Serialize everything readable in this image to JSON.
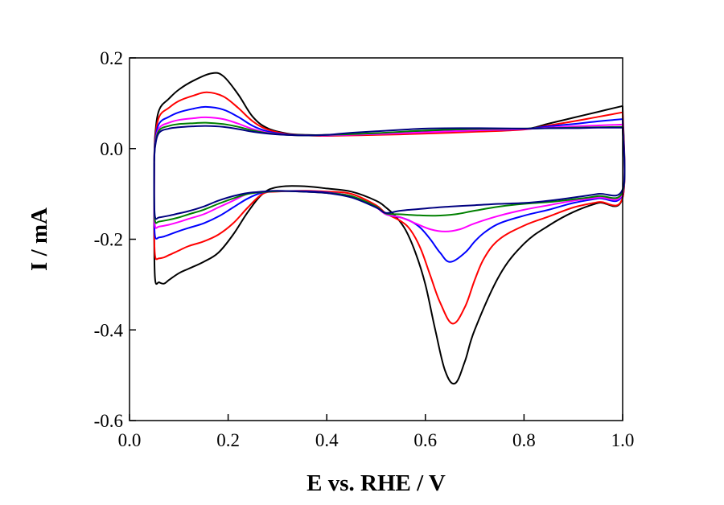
{
  "chart_data": {
    "type": "line",
    "title": "",
    "xlabel": "E vs. RHE / V",
    "ylabel": "I / mA",
    "xlim": [
      0.0,
      1.0
    ],
    "ylim": [
      -0.6,
      0.2
    ],
    "xticks": [
      "0.0",
      "0.2",
      "0.4",
      "0.6",
      "0.8",
      "1.0"
    ],
    "xtick_values": [
      0.0,
      0.2,
      0.4,
      0.6,
      0.8,
      1.0
    ],
    "yticks": [
      "0.2",
      "0.0",
      "-0.2",
      "-0.4",
      "-0.6"
    ],
    "ytick_values": [
      0.2,
      0.0,
      -0.2,
      -0.4,
      -0.6
    ],
    "grid": false,
    "legend": "none",
    "series": [
      {
        "name": "curve-black",
        "color": "#000000",
        "anodic_x": [
          0.05,
          0.052,
          0.06,
          0.08,
          0.1,
          0.13,
          0.166,
          0.19,
          0.22,
          0.25,
          0.28,
          0.32,
          0.36,
          0.4,
          0.5,
          0.6,
          0.7,
          0.8,
          0.85,
          0.9,
          0.95,
          1.0
        ],
        "anodic_y": [
          -0.03,
          0.03,
          0.085,
          0.11,
          0.13,
          0.15,
          0.166,
          0.16,
          0.12,
          0.07,
          0.045,
          0.033,
          0.03,
          0.03,
          0.033,
          0.037,
          0.04,
          0.043,
          0.055,
          0.068,
          0.081,
          0.094
        ],
        "cathodic_x": [
          1.0,
          0.95,
          0.9,
          0.85,
          0.8,
          0.75,
          0.7,
          0.68,
          0.66,
          0.64,
          0.62,
          0.6,
          0.58,
          0.56,
          0.54,
          0.52,
          0.5,
          0.45,
          0.4,
          0.35,
          0.3,
          0.27,
          0.24,
          0.21,
          0.18,
          0.15,
          0.12,
          0.1,
          0.08,
          0.07,
          0.06,
          0.052,
          0.05
        ],
        "cathodic_y": [
          -0.108,
          -0.12,
          -0.14,
          -0.17,
          -0.21,
          -0.28,
          -0.4,
          -0.47,
          -0.518,
          -0.49,
          -0.4,
          -0.3,
          -0.23,
          -0.18,
          -0.15,
          -0.13,
          -0.115,
          -0.095,
          -0.088,
          -0.083,
          -0.085,
          -0.1,
          -0.14,
          -0.19,
          -0.23,
          -0.25,
          -0.265,
          -0.275,
          -0.29,
          -0.298,
          -0.295,
          -0.29,
          -0.2
        ]
      },
      {
        "name": "curve-red",
        "color": "#ff0000",
        "anodic_x": [
          0.05,
          0.052,
          0.06,
          0.08,
          0.1,
          0.13,
          0.157,
          0.19,
          0.22,
          0.25,
          0.28,
          0.32,
          0.36,
          0.4,
          0.5,
          0.6,
          0.7,
          0.8,
          0.85,
          0.9,
          0.95,
          1.0
        ],
        "anodic_y": [
          -0.03,
          0.02,
          0.07,
          0.09,
          0.105,
          0.117,
          0.124,
          0.115,
          0.09,
          0.06,
          0.042,
          0.032,
          0.029,
          0.028,
          0.03,
          0.033,
          0.037,
          0.042,
          0.051,
          0.06,
          0.07,
          0.08
        ],
        "cathodic_x": [
          1.0,
          0.95,
          0.9,
          0.85,
          0.8,
          0.75,
          0.72,
          0.7,
          0.68,
          0.655,
          0.63,
          0.61,
          0.59,
          0.57,
          0.55,
          0.52,
          0.5,
          0.45,
          0.4,
          0.35,
          0.3,
          0.27,
          0.24,
          0.21,
          0.18,
          0.15,
          0.12,
          0.1,
          0.08,
          0.07,
          0.06,
          0.052,
          0.05
        ],
        "cathodic_y": [
          -0.108,
          -0.118,
          -0.13,
          -0.15,
          -0.17,
          -0.2,
          -0.24,
          -0.29,
          -0.35,
          -0.386,
          -0.34,
          -0.28,
          -0.22,
          -0.18,
          -0.16,
          -0.143,
          -0.125,
          -0.1,
          -0.095,
          -0.093,
          -0.095,
          -0.1,
          -0.13,
          -0.165,
          -0.19,
          -0.205,
          -0.215,
          -0.225,
          -0.235,
          -0.24,
          -0.242,
          -0.238,
          -0.18
        ]
      },
      {
        "name": "curve-blue",
        "color": "#0000ff",
        "anodic_x": [
          0.05,
          0.052,
          0.06,
          0.08,
          0.1,
          0.13,
          0.155,
          0.19,
          0.22,
          0.25,
          0.28,
          0.32,
          0.36,
          0.4,
          0.5,
          0.6,
          0.7,
          0.8,
          0.85,
          0.9,
          0.95,
          1.0
        ],
        "anodic_y": [
          -0.03,
          0.015,
          0.055,
          0.07,
          0.08,
          0.088,
          0.092,
          0.086,
          0.07,
          0.05,
          0.038,
          0.031,
          0.029,
          0.029,
          0.032,
          0.036,
          0.04,
          0.043,
          0.049,
          0.054,
          0.06,
          0.065
        ],
        "cathodic_x": [
          1.0,
          0.95,
          0.9,
          0.85,
          0.8,
          0.75,
          0.72,
          0.7,
          0.68,
          0.65,
          0.63,
          0.61,
          0.59,
          0.57,
          0.55,
          0.52,
          0.5,
          0.45,
          0.4,
          0.35,
          0.3,
          0.27,
          0.24,
          0.21,
          0.18,
          0.15,
          0.12,
          0.1,
          0.08,
          0.07,
          0.06,
          0.052,
          0.05
        ],
        "cathodic_y": [
          -0.1,
          -0.11,
          -0.12,
          -0.135,
          -0.148,
          -0.165,
          -0.185,
          -0.205,
          -0.23,
          -0.25,
          -0.23,
          -0.2,
          -0.175,
          -0.16,
          -0.152,
          -0.145,
          -0.128,
          -0.105,
          -0.097,
          -0.094,
          -0.094,
          -0.097,
          -0.11,
          -0.13,
          -0.15,
          -0.165,
          -0.175,
          -0.182,
          -0.19,
          -0.194,
          -0.196,
          -0.195,
          -0.15
        ]
      },
      {
        "name": "curve-magenta",
        "color": "#ff00ff",
        "anodic_x": [
          0.05,
          0.052,
          0.06,
          0.08,
          0.1,
          0.13,
          0.155,
          0.19,
          0.22,
          0.25,
          0.28,
          0.32,
          0.36,
          0.4,
          0.5,
          0.6,
          0.7,
          0.8,
          0.85,
          0.9,
          0.95,
          1.0
        ],
        "anodic_y": [
          -0.03,
          0.01,
          0.045,
          0.057,
          0.063,
          0.067,
          0.069,
          0.065,
          0.055,
          0.043,
          0.035,
          0.03,
          0.029,
          0.029,
          0.032,
          0.036,
          0.04,
          0.043,
          0.046,
          0.049,
          0.051,
          0.053
        ],
        "cathodic_x": [
          1.0,
          0.95,
          0.9,
          0.85,
          0.8,
          0.75,
          0.7,
          0.67,
          0.64,
          0.61,
          0.58,
          0.55,
          0.52,
          0.5,
          0.45,
          0.4,
          0.35,
          0.3,
          0.27,
          0.24,
          0.21,
          0.18,
          0.15,
          0.12,
          0.1,
          0.08,
          0.06,
          0.052,
          0.05
        ],
        "cathodic_y": [
          -0.098,
          -0.108,
          -0.115,
          -0.125,
          -0.135,
          -0.148,
          -0.165,
          -0.178,
          -0.183,
          -0.178,
          -0.165,
          -0.152,
          -0.145,
          -0.13,
          -0.105,
          -0.098,
          -0.095,
          -0.094,
          -0.096,
          -0.1,
          -0.115,
          -0.13,
          -0.145,
          -0.155,
          -0.162,
          -0.168,
          -0.172,
          -0.172,
          -0.13
        ]
      },
      {
        "name": "curve-green",
        "color": "#008000",
        "anodic_x": [
          0.05,
          0.052,
          0.06,
          0.08,
          0.1,
          0.13,
          0.155,
          0.19,
          0.22,
          0.25,
          0.28,
          0.32,
          0.36,
          0.4,
          0.5,
          0.6,
          0.7,
          0.8,
          0.85,
          0.9,
          0.95,
          1.0
        ],
        "anodic_y": [
          -0.03,
          0.008,
          0.04,
          0.05,
          0.054,
          0.056,
          0.057,
          0.054,
          0.048,
          0.04,
          0.034,
          0.03,
          0.029,
          0.03,
          0.034,
          0.04,
          0.043,
          0.044,
          0.045,
          0.046,
          0.047,
          0.048
        ],
        "cathodic_x": [
          1.0,
          0.95,
          0.9,
          0.85,
          0.8,
          0.75,
          0.7,
          0.66,
          0.62,
          0.58,
          0.55,
          0.52,
          0.5,
          0.45,
          0.4,
          0.35,
          0.3,
          0.27,
          0.24,
          0.21,
          0.18,
          0.15,
          0.12,
          0.1,
          0.08,
          0.06,
          0.052,
          0.05
        ],
        "cathodic_y": [
          -0.095,
          -0.105,
          -0.112,
          -0.118,
          -0.122,
          -0.128,
          -0.137,
          -0.145,
          -0.148,
          -0.147,
          -0.145,
          -0.143,
          -0.128,
          -0.105,
          -0.098,
          -0.095,
          -0.094,
          -0.096,
          -0.1,
          -0.11,
          -0.122,
          -0.135,
          -0.145,
          -0.152,
          -0.157,
          -0.161,
          -0.161,
          -0.12
        ]
      },
      {
        "name": "curve-navy",
        "color": "#000080",
        "anodic_x": [
          0.05,
          0.052,
          0.06,
          0.08,
          0.1,
          0.13,
          0.155,
          0.19,
          0.22,
          0.25,
          0.28,
          0.32,
          0.36,
          0.4,
          0.44,
          0.5,
          0.6,
          0.7,
          0.8,
          0.85,
          0.9,
          0.95,
          1.0
        ],
        "anodic_y": [
          -0.03,
          0.005,
          0.035,
          0.044,
          0.047,
          0.049,
          0.05,
          0.048,
          0.043,
          0.037,
          0.033,
          0.03,
          0.029,
          0.03,
          0.034,
          0.038,
          0.044,
          0.045,
          0.044,
          0.045,
          0.045,
          0.046,
          0.046
        ],
        "cathodic_x": [
          1.0,
          0.95,
          0.9,
          0.85,
          0.8,
          0.75,
          0.7,
          0.65,
          0.6,
          0.55,
          0.52,
          0.5,
          0.45,
          0.4,
          0.35,
          0.3,
          0.27,
          0.24,
          0.21,
          0.18,
          0.15,
          0.12,
          0.1,
          0.08,
          0.06,
          0.052,
          0.05
        ],
        "cathodic_y": [
          -0.09,
          -0.1,
          -0.108,
          -0.115,
          -0.12,
          -0.122,
          -0.125,
          -0.128,
          -0.132,
          -0.137,
          -0.142,
          -0.13,
          -0.108,
          -0.098,
          -0.095,
          -0.093,
          -0.095,
          -0.098,
          -0.105,
          -0.115,
          -0.128,
          -0.138,
          -0.143,
          -0.148,
          -0.152,
          -0.152,
          -0.11
        ]
      }
    ]
  }
}
